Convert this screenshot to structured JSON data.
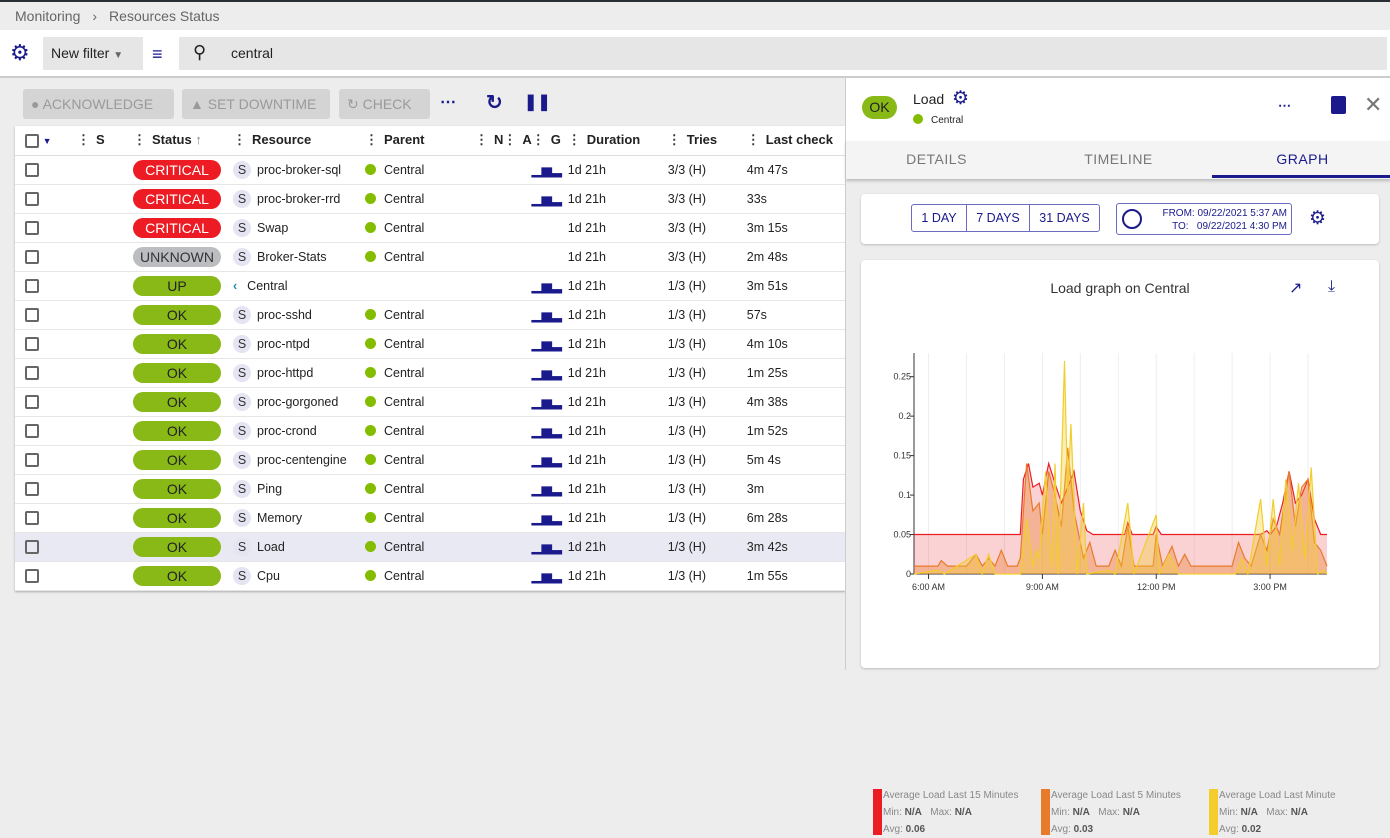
{
  "breadcrumb": [
    "Monitoring",
    "Resources Status"
  ],
  "filter": {
    "selected": "New filter",
    "search": "central"
  },
  "actions": {
    "acknowledge": "ACKNOWLEDGE",
    "downtime": "SET DOWNTIME",
    "check": "CHECK"
  },
  "columns": [
    "S",
    "Status",
    "Resource",
    "Parent",
    "N",
    "A",
    "G",
    "Duration",
    "Tries",
    "Last check"
  ],
  "colors": {
    "critical": "#ed1c24",
    "unknown": "#bcbdc0",
    "ok": "#88b917",
    "accent": "#1a1a8c"
  },
  "rows": [
    {
      "status": "CRITICAL",
      "type": "S",
      "resource": "proc-broker-sql",
      "parent": "Central",
      "graph": true,
      "duration": "1d 21h",
      "tries": "3/3 (H)",
      "last": "4m 47s"
    },
    {
      "status": "CRITICAL",
      "type": "S",
      "resource": "proc-broker-rrd",
      "parent": "Central",
      "graph": true,
      "duration": "1d 21h",
      "tries": "3/3 (H)",
      "last": "33s"
    },
    {
      "status": "CRITICAL",
      "type": "S",
      "resource": "Swap",
      "parent": "Central",
      "graph": false,
      "duration": "1d 21h",
      "tries": "3/3 (H)",
      "last": "3m 15s"
    },
    {
      "status": "UNKNOWN",
      "type": "S",
      "resource": "Broker-Stats",
      "parent": "Central",
      "graph": false,
      "duration": "1d 21h",
      "tries": "3/3 (H)",
      "last": "2m 48s"
    },
    {
      "status": "UP",
      "type": "H",
      "resource": "Central",
      "parent": "",
      "graph": true,
      "duration": "1d 21h",
      "tries": "1/3 (H)",
      "last": "3m 51s"
    },
    {
      "status": "OK",
      "type": "S",
      "resource": "proc-sshd",
      "parent": "Central",
      "graph": true,
      "duration": "1d 21h",
      "tries": "1/3 (H)",
      "last": "57s"
    },
    {
      "status": "OK",
      "type": "S",
      "resource": "proc-ntpd",
      "parent": "Central",
      "graph": true,
      "duration": "1d 21h",
      "tries": "1/3 (H)",
      "last": "4m 10s"
    },
    {
      "status": "OK",
      "type": "S",
      "resource": "proc-httpd",
      "parent": "Central",
      "graph": true,
      "duration": "1d 21h",
      "tries": "1/3 (H)",
      "last": "1m 25s"
    },
    {
      "status": "OK",
      "type": "S",
      "resource": "proc-gorgoned",
      "parent": "Central",
      "graph": true,
      "duration": "1d 21h",
      "tries": "1/3 (H)",
      "last": "4m 38s"
    },
    {
      "status": "OK",
      "type": "S",
      "resource": "proc-crond",
      "parent": "Central",
      "graph": true,
      "duration": "1d 21h",
      "tries": "1/3 (H)",
      "last": "1m 52s"
    },
    {
      "status": "OK",
      "type": "S",
      "resource": "proc-centengine",
      "parent": "Central",
      "graph": true,
      "duration": "1d 21h",
      "tries": "1/3 (H)",
      "last": "5m 4s"
    },
    {
      "status": "OK",
      "type": "S",
      "resource": "Ping",
      "parent": "Central",
      "graph": true,
      "duration": "1d 21h",
      "tries": "1/3 (H)",
      "last": "3m"
    },
    {
      "status": "OK",
      "type": "S",
      "resource": "Memory",
      "parent": "Central",
      "graph": true,
      "duration": "1d 21h",
      "tries": "1/3 (H)",
      "last": "6m 28s"
    },
    {
      "status": "OK",
      "type": "S",
      "resource": "Load",
      "parent": "Central",
      "graph": true,
      "duration": "1d 21h",
      "tries": "1/3 (H)",
      "last": "3m 42s",
      "selected": true
    },
    {
      "status": "OK",
      "type": "S",
      "resource": "Cpu",
      "parent": "Central",
      "graph": true,
      "duration": "1d 21h",
      "tries": "1/3 (H)",
      "last": "1m 55s"
    }
  ],
  "panel": {
    "status": "OK",
    "name": "Load",
    "parent": "Central",
    "tabs": [
      "DETAILS",
      "TIMELINE",
      "GRAPH"
    ],
    "active_tab": "GRAPH",
    "periods": [
      "1 DAY",
      "7 DAYS",
      "31 DAYS"
    ],
    "from_label": "FROM:",
    "from": "09/22/2021 5:37 AM",
    "to_label": "TO:",
    "to": "09/22/2021 4:30 PM"
  },
  "chart_data": {
    "type": "area",
    "title": "Load graph on Central",
    "xlim": [
      "05:37",
      "16:30"
    ],
    "ylim": [
      0,
      0.28
    ],
    "xticks": [
      [
        "06:00",
        "6:00 AM"
      ],
      [
        "09:00",
        "9:00 AM"
      ],
      [
        "12:00",
        "12:00 PM"
      ],
      [
        "15:00",
        "3:00 PM"
      ]
    ],
    "yticks": [
      0,
      0.05,
      0.1,
      0.15,
      0.2,
      0.25
    ],
    "grid": "vertical",
    "series": [
      {
        "name": "Average Load Last 15 Minutes",
        "color": "#ed1c24",
        "min": "N/A",
        "max": "N/A",
        "avg": "0.06",
        "points": [
          [
            "05:37",
            0.05
          ],
          [
            "08:25",
            0.05
          ],
          [
            "08:30",
            0.12
          ],
          [
            "08:38",
            0.14
          ],
          [
            "08:45",
            0.11
          ],
          [
            "08:55",
            0.115
          ],
          [
            "09:00",
            0.1
          ],
          [
            "09:10",
            0.14
          ],
          [
            "09:20",
            0.115
          ],
          [
            "09:30",
            0.09
          ],
          [
            "09:40",
            0.11
          ],
          [
            "09:50",
            0.13
          ],
          [
            "10:00",
            0.08
          ],
          [
            "10:10",
            0.055
          ],
          [
            "10:20",
            0.05
          ],
          [
            "11:10",
            0.05
          ],
          [
            "11:15",
            0.065
          ],
          [
            "11:22",
            0.05
          ],
          [
            "11:55",
            0.05
          ],
          [
            "12:00",
            0.06
          ],
          [
            "12:08",
            0.05
          ],
          [
            "14:45",
            0.05
          ],
          [
            "14:55",
            0.055
          ],
          [
            "15:00",
            0.05
          ],
          [
            "15:10",
            0.06
          ],
          [
            "15:20",
            0.09
          ],
          [
            "15:30",
            0.13
          ],
          [
            "15:40",
            0.09
          ],
          [
            "15:50",
            0.1
          ],
          [
            "16:00",
            0.12
          ],
          [
            "16:10",
            0.07
          ],
          [
            "16:20",
            0.05
          ],
          [
            "16:30",
            0.05
          ]
        ]
      },
      {
        "name": "Average Load Last 5 Minutes",
        "color": "#e87b29",
        "min": "N/A",
        "max": "N/A",
        "avg": "0.03",
        "points": [
          [
            "05:37",
            0.01
          ],
          [
            "06:15",
            0.01
          ],
          [
            "06:20",
            0.017
          ],
          [
            "06:30",
            0.01
          ],
          [
            "07:00",
            0.01
          ],
          [
            "07:15",
            0.025
          ],
          [
            "07:25",
            0.01
          ],
          [
            "07:35",
            0.02
          ],
          [
            "07:45",
            0.01
          ],
          [
            "07:55",
            0.03
          ],
          [
            "08:05",
            0.01
          ],
          [
            "08:20",
            0.01
          ],
          [
            "08:25",
            0.02
          ],
          [
            "08:35",
            0.14
          ],
          [
            "08:45",
            0.08
          ],
          [
            "08:55",
            0.09
          ],
          [
            "09:00",
            0.05
          ],
          [
            "09:10",
            0.13
          ],
          [
            "09:20",
            0.1
          ],
          [
            "09:30",
            0.06
          ],
          [
            "09:40",
            0.16
          ],
          [
            "09:50",
            0.08
          ],
          [
            "10:00",
            0.04
          ],
          [
            "10:05",
            0.02
          ],
          [
            "10:15",
            0.04
          ],
          [
            "10:25",
            0.01
          ],
          [
            "10:45",
            0.01
          ],
          [
            "10:55",
            0.03
          ],
          [
            "11:05",
            0.01
          ],
          [
            "11:15",
            0.06
          ],
          [
            "11:25",
            0.01
          ],
          [
            "11:55",
            0.01
          ],
          [
            "12:00",
            0.05
          ],
          [
            "12:10",
            0.01
          ],
          [
            "12:25",
            0.035
          ],
          [
            "12:35",
            0.01
          ],
          [
            "12:45",
            0.025
          ],
          [
            "12:55",
            0.01
          ],
          [
            "14:00",
            0.01
          ],
          [
            "14:10",
            0.04
          ],
          [
            "14:20",
            0.02
          ],
          [
            "14:30",
            0.01
          ],
          [
            "14:45",
            0.05
          ],
          [
            "14:55",
            0.03
          ],
          [
            "15:05",
            0.07
          ],
          [
            "15:15",
            0.05
          ],
          [
            "15:30",
            0.13
          ],
          [
            "15:40",
            0.06
          ],
          [
            "15:50",
            0.11
          ],
          [
            "16:00",
            0.12
          ],
          [
            "16:10",
            0.04
          ],
          [
            "16:20",
            0.03
          ],
          [
            "16:30",
            0.01
          ]
        ]
      },
      {
        "name": "Average Load Last Minute",
        "color": "#f2cd2c",
        "min": "N/A",
        "max": "N/A",
        "avg": "0.02",
        "points": [
          [
            "05:37",
            0
          ],
          [
            "06:15",
            0.005
          ],
          [
            "06:25",
            0
          ],
          [
            "07:15",
            0.025
          ],
          [
            "07:25",
            0
          ],
          [
            "07:35",
            0.025
          ],
          [
            "07:45",
            0
          ],
          [
            "08:25",
            0
          ],
          [
            "08:35",
            0.07
          ],
          [
            "08:45",
            0.01
          ],
          [
            "08:50",
            0.03
          ],
          [
            "08:55",
            0.02
          ],
          [
            "09:05",
            0.13
          ],
          [
            "09:10",
            0.06
          ],
          [
            "09:15",
            0.01
          ],
          [
            "09:20",
            0.14
          ],
          [
            "09:25",
            0
          ],
          [
            "09:35",
            0.27
          ],
          [
            "09:40",
            0.1
          ],
          [
            "09:45",
            0.19
          ],
          [
            "09:55",
            0
          ],
          [
            "10:05",
            0.09
          ],
          [
            "10:10",
            0
          ],
          [
            "10:45",
            0.005
          ],
          [
            "10:55",
            0
          ],
          [
            "11:15",
            0.09
          ],
          [
            "11:25",
            0
          ],
          [
            "12:00",
            0.075
          ],
          [
            "12:05",
            0
          ],
          [
            "12:20",
            0.025
          ],
          [
            "12:35",
            0
          ],
          [
            "14:05",
            0
          ],
          [
            "14:15",
            0.02
          ],
          [
            "14:25",
            0
          ],
          [
            "14:45",
            0.095
          ],
          [
            "14:55",
            0.01
          ],
          [
            "15:05",
            0.095
          ],
          [
            "15:15",
            0.01
          ],
          [
            "15:25",
            0.12
          ],
          [
            "15:35",
            0.03
          ],
          [
            "15:45",
            0.115
          ],
          [
            "15:55",
            0.02
          ],
          [
            "16:05",
            0.135
          ],
          [
            "16:15",
            0
          ],
          [
            "16:25",
            0.005
          ],
          [
            "16:30",
            0
          ]
        ]
      }
    ]
  }
}
